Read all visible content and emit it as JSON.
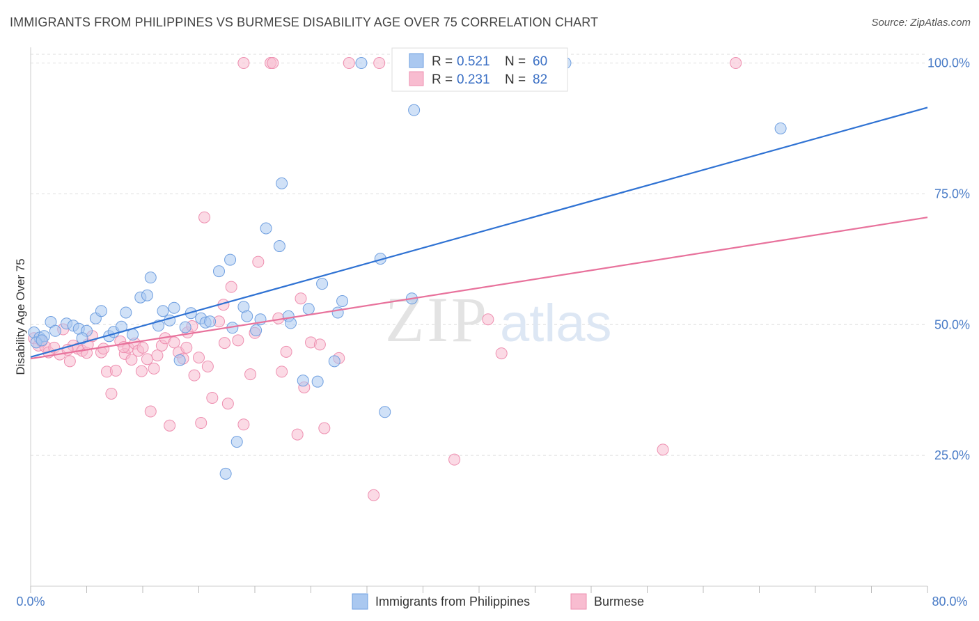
{
  "title": "IMMIGRANTS FROM PHILIPPINES VS BURMESE DISABILITY AGE OVER 75 CORRELATION CHART",
  "source": "Source: ZipAtlas.com",
  "watermark": {
    "zip": "ZIP",
    "atlas": "atlas"
  },
  "colors": {
    "blue_fill": "#aac8f0",
    "blue_stroke": "#6f9fe0",
    "blue_line": "#2f72d3",
    "pink_fill": "#f8bcd0",
    "pink_stroke": "#ee8fb0",
    "pink_line": "#e8729c",
    "tick_label": "#4a7cc7",
    "grid": "#dddddd"
  },
  "legend": {
    "rows": [
      {
        "r_label": "R = ",
        "r_value": "0.521",
        "n_label": "N = ",
        "n_value": "60"
      },
      {
        "r_label": "R = ",
        "r_value": "0.231",
        "n_label": "N = ",
        "n_value": "82"
      }
    ]
  },
  "bottom_legend": [
    "Immigrants from Philippines",
    "Burmese"
  ],
  "chart_data": {
    "type": "scatter",
    "title": "IMMIGRANTS FROM PHILIPPINES VS BURMESE DISABILITY AGE OVER 75 CORRELATION CHART",
    "xlabel": "",
    "ylabel": "Disability Age Over 75",
    "xlim": [
      0,
      80
    ],
    "ylim": [
      0,
      103
    ],
    "x_tick_labels": [
      "0.0%",
      "80.0%"
    ],
    "y_ticks": [
      25,
      50,
      75,
      100
    ],
    "y_tick_labels": [
      "25.0%",
      "50.0%",
      "75.0%",
      "100.0%"
    ],
    "grid": true,
    "legend_position": "top-center",
    "series": [
      {
        "name": "Immigrants from Philippines",
        "color": "#aac8f0",
        "r": 0.521,
        "n": 60,
        "trend": {
          "x": [
            0,
            80
          ],
          "y": [
            43.8,
            91.5
          ]
        },
        "points": [
          [
            0.3,
            48.5
          ],
          [
            0.8,
            47.5
          ],
          [
            1.2,
            47.8
          ],
          [
            1.8,
            50.5
          ],
          [
            2.2,
            48.8
          ],
          [
            3.2,
            50.2
          ],
          [
            3.8,
            49.8
          ],
          [
            4.3,
            49.2
          ],
          [
            5.0,
            48.8
          ],
          [
            5.8,
            51.2
          ],
          [
            6.3,
            52.6
          ],
          [
            7.0,
            47.8
          ],
          [
            7.4,
            48.6
          ],
          [
            8.1,
            49.6
          ],
          [
            8.5,
            52.3
          ],
          [
            9.1,
            48.1
          ],
          [
            9.8,
            55.2
          ],
          [
            10.4,
            55.6
          ],
          [
            10.7,
            59.0
          ],
          [
            11.4,
            49.8
          ],
          [
            11.8,
            52.6
          ],
          [
            12.4,
            50.8
          ],
          [
            12.8,
            53.2
          ],
          [
            13.3,
            43.2
          ],
          [
            13.8,
            49.5
          ],
          [
            14.3,
            52.2
          ],
          [
            15.2,
            51.2
          ],
          [
            15.6,
            50.4
          ],
          [
            16.0,
            50.6
          ],
          [
            16.8,
            60.2
          ],
          [
            17.4,
            21.5
          ],
          [
            17.8,
            62.4
          ],
          [
            18.0,
            49.4
          ],
          [
            18.4,
            27.6
          ],
          [
            19.0,
            53.4
          ],
          [
            19.3,
            51.6
          ],
          [
            20.1,
            48.9
          ],
          [
            20.5,
            51.0
          ],
          [
            21.0,
            68.4
          ],
          [
            22.2,
            65.0
          ],
          [
            22.4,
            77.0
          ],
          [
            23.0,
            51.6
          ],
          [
            23.2,
            50.3
          ],
          [
            24.3,
            39.3
          ],
          [
            24.8,
            53.0
          ],
          [
            25.6,
            39.1
          ],
          [
            26.0,
            57.8
          ],
          [
            27.1,
            43.0
          ],
          [
            27.4,
            52.3
          ],
          [
            27.8,
            54.5
          ],
          [
            29.5,
            100.0
          ],
          [
            31.2,
            62.6
          ],
          [
            31.6,
            33.3
          ],
          [
            34.0,
            55.0
          ],
          [
            34.2,
            91.0
          ],
          [
            47.7,
            100.0
          ],
          [
            66.9,
            87.5
          ],
          [
            0.5,
            46.6
          ],
          [
            1.0,
            47.0
          ],
          [
            4.6,
            47.4
          ]
        ]
      },
      {
        "name": "Burmese",
        "color": "#f8bcd0",
        "r": 0.231,
        "n": 82,
        "trend": {
          "x": [
            0,
            80
          ],
          "y": [
            43.5,
            70.5
          ]
        },
        "points": [
          [
            0.3,
            47.4
          ],
          [
            0.7,
            46.0
          ],
          [
            1.0,
            46.8
          ],
          [
            1.3,
            45.8
          ],
          [
            1.6,
            44.7
          ],
          [
            2.1,
            45.6
          ],
          [
            2.6,
            44.3
          ],
          [
            2.9,
            49.1
          ],
          [
            3.5,
            43.0
          ],
          [
            3.8,
            46.0
          ],
          [
            4.2,
            45.4
          ],
          [
            4.6,
            45.0
          ],
          [
            5.0,
            44.6
          ],
          [
            5.1,
            46.2
          ],
          [
            5.5,
            47.8
          ],
          [
            6.3,
            44.7
          ],
          [
            6.5,
            45.4
          ],
          [
            6.8,
            41.0
          ],
          [
            7.2,
            36.8
          ],
          [
            7.6,
            41.2
          ],
          [
            8.0,
            46.8
          ],
          [
            8.4,
            44.4
          ],
          [
            8.7,
            45.6
          ],
          [
            9.0,
            43.3
          ],
          [
            9.3,
            46.4
          ],
          [
            9.6,
            45.0
          ],
          [
            9.9,
            41.1
          ],
          [
            10.4,
            43.4
          ],
          [
            10.7,
            33.4
          ],
          [
            11.0,
            41.6
          ],
          [
            11.3,
            44.1
          ],
          [
            11.7,
            46.0
          ],
          [
            12.0,
            47.4
          ],
          [
            12.4,
            30.7
          ],
          [
            12.8,
            46.6
          ],
          [
            13.2,
            44.7
          ],
          [
            13.6,
            43.5
          ],
          [
            14.0,
            48.5
          ],
          [
            14.4,
            49.7
          ],
          [
            14.6,
            40.3
          ],
          [
            15.0,
            43.7
          ],
          [
            15.2,
            31.2
          ],
          [
            15.5,
            70.5
          ],
          [
            15.8,
            42.0
          ],
          [
            16.2,
            36.0
          ],
          [
            16.8,
            50.6
          ],
          [
            17.2,
            53.8
          ],
          [
            17.6,
            34.9
          ],
          [
            17.9,
            57.2
          ],
          [
            18.5,
            47.0
          ],
          [
            19.0,
            30.9
          ],
          [
            19.6,
            40.5
          ],
          [
            20.0,
            48.4
          ],
          [
            21.4,
            100.0
          ],
          [
            21.6,
            100.0
          ],
          [
            22.1,
            51.2
          ],
          [
            22.4,
            41.0
          ],
          [
            22.8,
            44.8
          ],
          [
            23.8,
            29.0
          ],
          [
            24.1,
            55.0
          ],
          [
            24.4,
            38.0
          ],
          [
            25.0,
            46.6
          ],
          [
            25.8,
            46.2
          ],
          [
            26.2,
            30.2
          ],
          [
            27.5,
            43.6
          ],
          [
            28.4,
            100.0
          ],
          [
            30.6,
            17.4
          ],
          [
            31.1,
            100.0
          ],
          [
            33.3,
            100.0
          ],
          [
            35.3,
            100.0
          ],
          [
            37.8,
            24.2
          ],
          [
            40.8,
            51.0
          ],
          [
            42.0,
            44.5
          ],
          [
            56.4,
            26.1
          ],
          [
            62.9,
            100.0
          ],
          [
            17.3,
            46.5
          ],
          [
            19.0,
            100.0
          ],
          [
            20.3,
            62.0
          ],
          [
            13.9,
            45.6
          ],
          [
            8.3,
            45.7
          ],
          [
            3.3,
            45.2
          ],
          [
            10.0,
            45.6
          ]
        ]
      }
    ]
  }
}
